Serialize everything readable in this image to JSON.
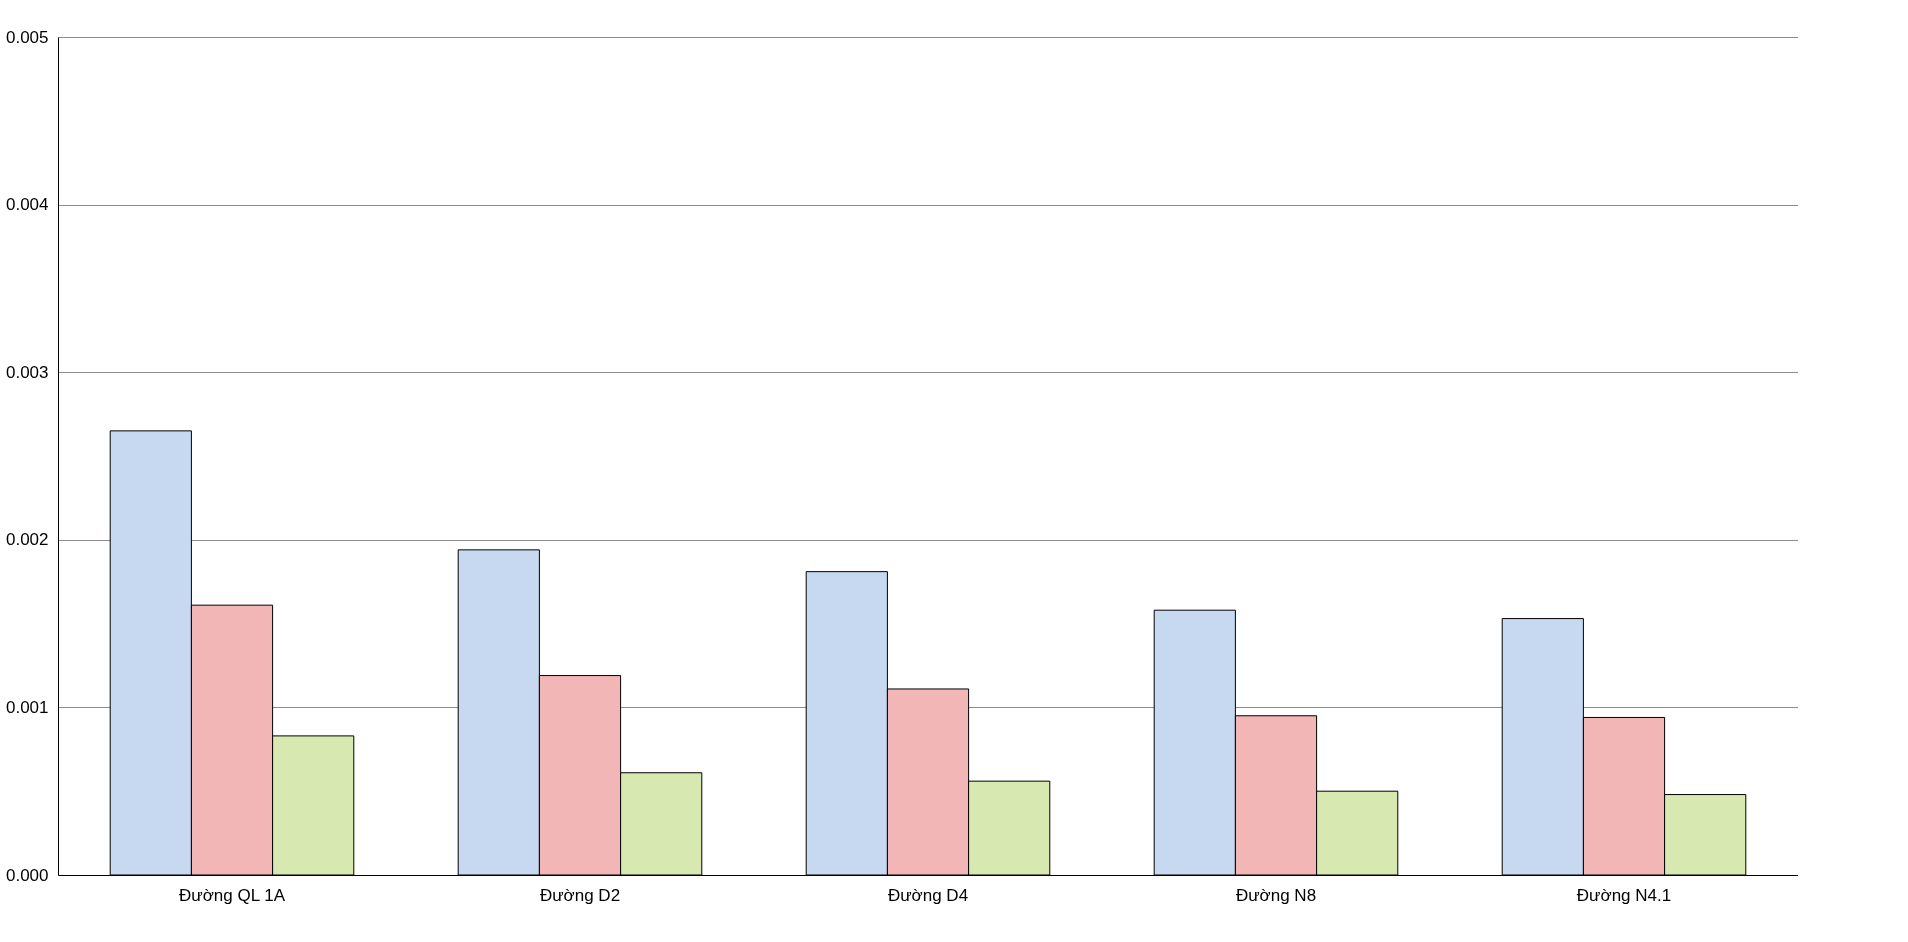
{
  "chart_data": {
    "type": "bar",
    "categories": [
      "Đường QL 1A",
      "Đường D2",
      "Đường D4",
      "Đường N8",
      "Đường N4.1"
    ],
    "series": [
      {
        "color": "#c6d9f1",
        "values": [
          0.00265,
          0.00194,
          0.00181,
          0.00158,
          0.00153
        ]
      },
      {
        "color": "#f2b6b6",
        "values": [
          0.00161,
          0.00119,
          0.00111,
          0.00095,
          0.00094
        ]
      },
      {
        "color": "#d7e9b0",
        "values": [
          0.00083,
          0.00061,
          0.00056,
          0.0005,
          0.00048
        ]
      }
    ],
    "ylim": [
      0,
      0.005
    ],
    "yticks": [
      {
        "value": 0,
        "label": "0.000"
      },
      0.001,
      0.002,
      0.003,
      0.004,
      0.005
    ],
    "grid": "y",
    "legend": false
  }
}
